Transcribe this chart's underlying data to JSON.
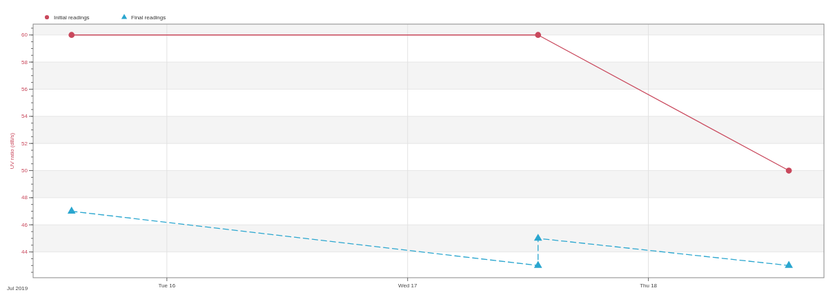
{
  "chart_data": {
    "type": "line",
    "ylabel": "UV ratio (dB/s)",
    "ylim": [
      42.1,
      60.8
    ],
    "yticks": [
      44,
      46,
      48,
      50,
      52,
      54,
      56,
      58,
      60
    ],
    "xlim": [
      "2019-07-15T10:40",
      "2019-07-18T17:30"
    ],
    "xticks": [
      {
        "value": "2019-07-16",
        "label": "Tue 16"
      },
      {
        "value": "2019-07-17",
        "label": "Wed 17"
      },
      {
        "value": "2019-07-18",
        "label": "Thu 18"
      }
    ],
    "annotations": [
      "Jul 2019"
    ],
    "grid": true,
    "legend": "top left",
    "series": [
      {
        "name": "Initial readings",
        "color": "#c9485c",
        "marker": "circle",
        "line_style": "solid",
        "x": [
          "2019-07-15T14:30",
          "2019-07-17T13:00",
          "2019-07-18T14:00"
        ],
        "values": [
          60,
          60,
          50
        ]
      },
      {
        "name": "Final readings",
        "color": "#2aa6cf",
        "marker": "triangle",
        "line_style": "dashed",
        "x": [
          "2019-07-15T14:30",
          "2019-07-17T13:00",
          "2019-07-17T13:00",
          "2019-07-18T14:00"
        ],
        "values": [
          47,
          43,
          45,
          43
        ]
      }
    ]
  }
}
